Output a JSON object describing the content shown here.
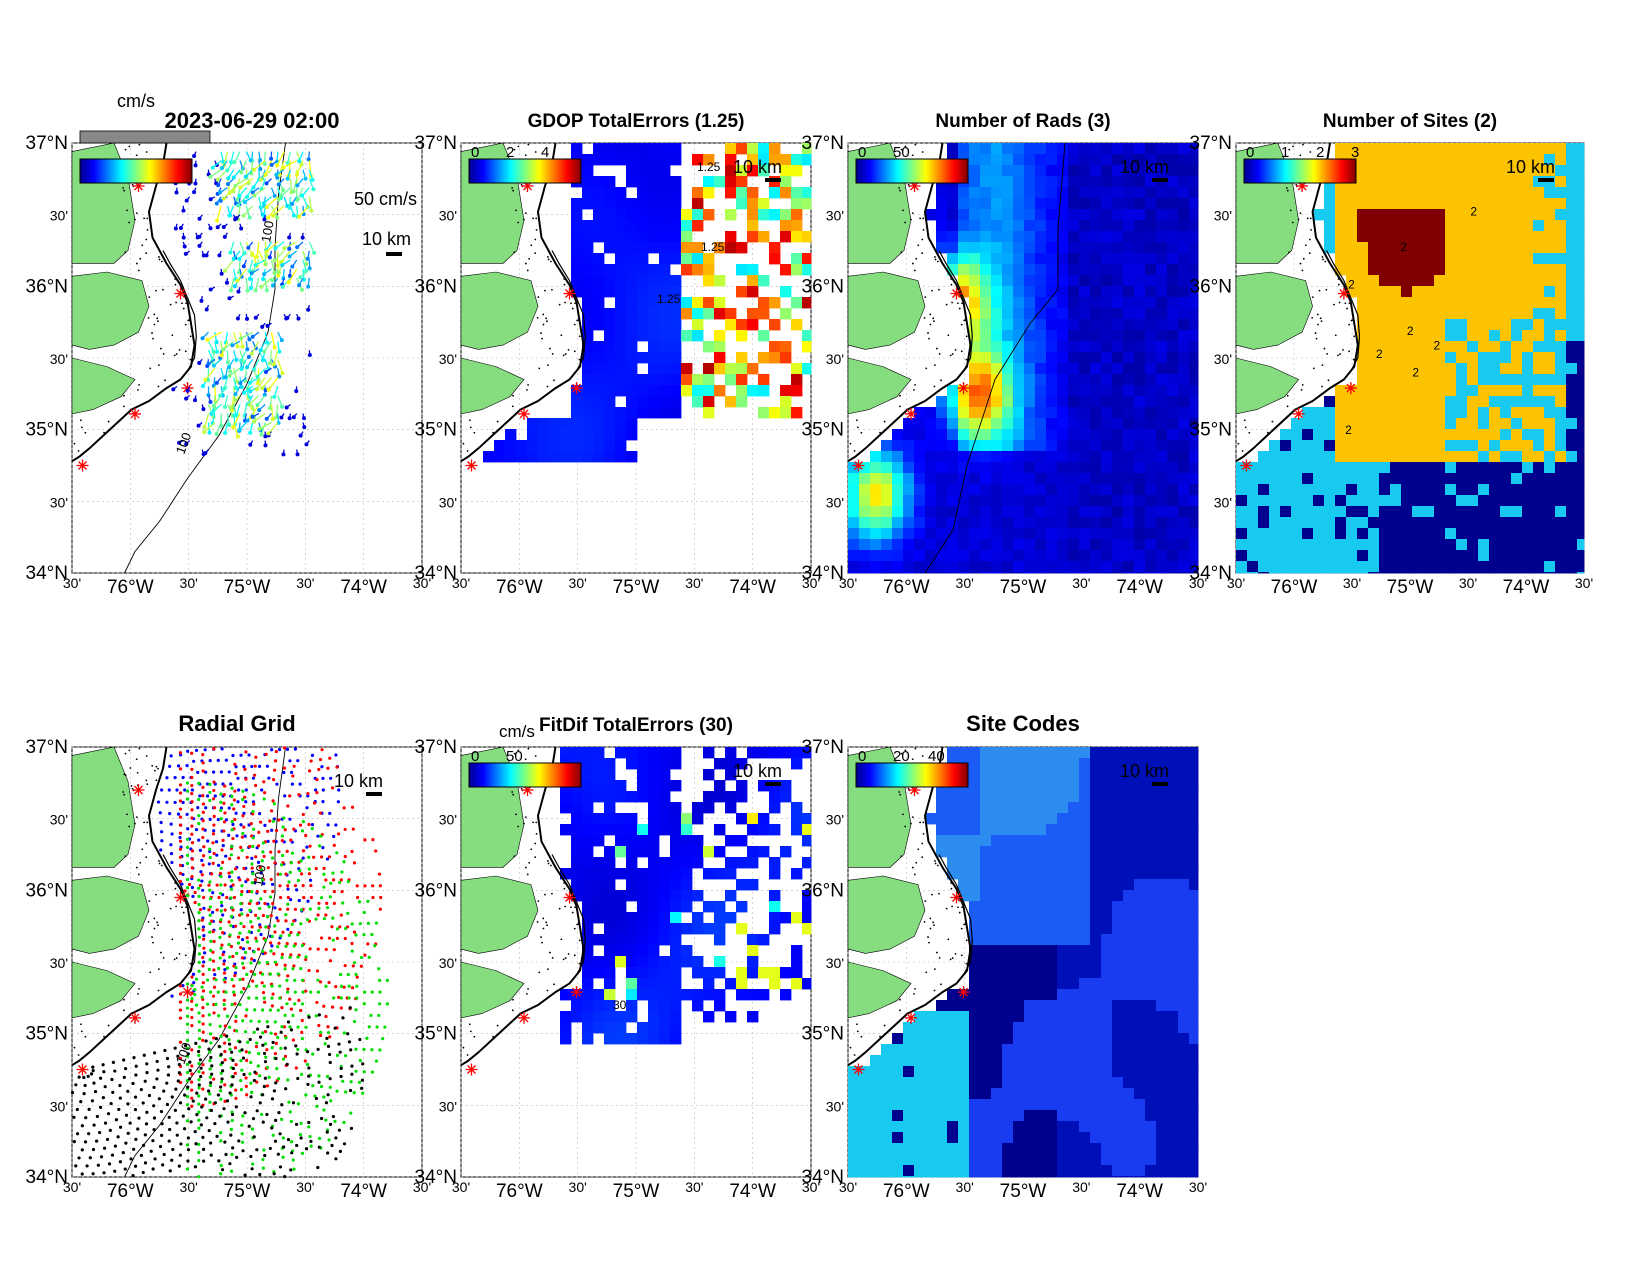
{
  "figure": {
    "timestamp": "2023-06-29 02:00",
    "colors": {
      "land": "#86dd80",
      "ocean_low": "#00008f",
      "ocean_mid": "#1c3dfe",
      "cyan": "#18c9f0",
      "gold": "#fcc300",
      "maroon": "#800000",
      "site_marker": "#ff0000"
    }
  },
  "chart_data": [
    {
      "type": "map",
      "id": "vectors",
      "title": "",
      "top_label": "2023-06-29 02:00",
      "colorbar_unit": "cm/s",
      "colorbar_ticks": [],
      "vector_scale_label": "50 cm/s",
      "scale_bar_label": "10 km",
      "lat_ticks": [
        "37°N",
        "30'",
        "36°N",
        "30'",
        "35°N",
        "30'",
        "34°N"
      ],
      "lon_ticks": [
        "30'",
        "76°W",
        "30'",
        "75°W",
        "30'",
        "74°W",
        "30'"
      ],
      "lon_range": [
        -76.5,
        -73.5
      ],
      "lat_range": [
        34,
        37
      ],
      "contour_labels": [
        "100",
        "100"
      ],
      "colormap": "jet"
    },
    {
      "type": "heatmap",
      "id": "gdop",
      "title": "GDOP TotalErrors (1.25)",
      "colorbar_ticks": [
        "0",
        "2",
        "4"
      ],
      "scale_bar_label": "10 km",
      "contour_labels": [
        "1.25",
        "1.25",
        "1.25"
      ],
      "lat_ticks": [
        "37°N",
        "30'",
        "36°N",
        "30'",
        "35°N",
        "30'",
        "34°N"
      ],
      "lon_ticks": [
        "30'",
        "76°W",
        "30'",
        "75°W",
        "30'",
        "74°W",
        "30'"
      ],
      "value_range": [
        0,
        4
      ],
      "colormap": "jet"
    },
    {
      "type": "heatmap",
      "id": "rads",
      "title": "Number of Rads (3)",
      "colorbar_ticks": [
        "0",
        "50"
      ],
      "scale_bar_label": "10 km",
      "lat_ticks": [
        "37°N",
        "30'",
        "36°N",
        "30'",
        "35°N",
        "30'",
        "34°N"
      ],
      "lon_ticks": [
        "30'",
        "76°W",
        "30'",
        "75°W",
        "30'",
        "74°W",
        "30'"
      ],
      "value_range": [
        0,
        100
      ],
      "colormap": "jet"
    },
    {
      "type": "heatmap",
      "id": "sites",
      "title": "Number of Sites (2)",
      "colorbar_ticks": [
        "0",
        "1",
        "2",
        "3"
      ],
      "scale_bar_label": "10 km",
      "contour_labels": [
        "2",
        "2",
        "2",
        "2",
        "2",
        "2",
        "2",
        "2"
      ],
      "lat_ticks": [
        "37°N",
        "30'",
        "36°N",
        "30'",
        "35°N",
        "30'",
        "34°N"
      ],
      "lon_ticks": [
        "30'",
        "76°W",
        "30'",
        "75°W",
        "30'",
        "74°W",
        "30'"
      ],
      "value_range": [
        0,
        3
      ],
      "colormap": "jet"
    },
    {
      "type": "scatter",
      "id": "radgrid",
      "title": "Radial Grid",
      "scale_bar_label": "10 km",
      "contour_labels": [
        "100",
        "100"
      ],
      "series_colors": [
        "#0000ff",
        "#ff0000",
        "#00dd00",
        "#000000"
      ],
      "lat_ticks": [
        "37°N",
        "30'",
        "36°N",
        "30'",
        "35°N",
        "30'",
        "34°N"
      ],
      "lon_ticks": [
        "30'",
        "76°W",
        "30'",
        "75°W",
        "30'",
        "74°W",
        "30'"
      ]
    },
    {
      "type": "heatmap",
      "id": "fitdif",
      "title": "FitDif TotalErrors (30)",
      "colorbar_unit": "cm/s",
      "colorbar_ticks": [
        "0",
        "50"
      ],
      "scale_bar_label": "10 km",
      "contour_labels": [
        "30"
      ],
      "lat_ticks": [
        "37°N",
        "30'",
        "36°N",
        "30'",
        "35°N",
        "30'",
        "34°N"
      ],
      "lon_ticks": [
        "30'",
        "76°W",
        "30'",
        "75°W",
        "30'",
        "74°W",
        "30'"
      ],
      "value_range": [
        0,
        100
      ],
      "colormap": "jet"
    },
    {
      "type": "heatmap",
      "id": "codes",
      "title": "Site Codes",
      "colorbar_ticks": [
        "0",
        "20",
        "40"
      ],
      "scale_bar_label": "10 km",
      "lat_ticks": [
        "37°N",
        "30'",
        "36°N",
        "30'",
        "35°N",
        "30'",
        "34°N"
      ],
      "lon_ticks": [
        "30'",
        "76°W",
        "30'",
        "75°W",
        "30'",
        "74°W",
        "30'"
      ],
      "value_range": [
        0,
        50
      ],
      "colormap": "jet"
    }
  ]
}
